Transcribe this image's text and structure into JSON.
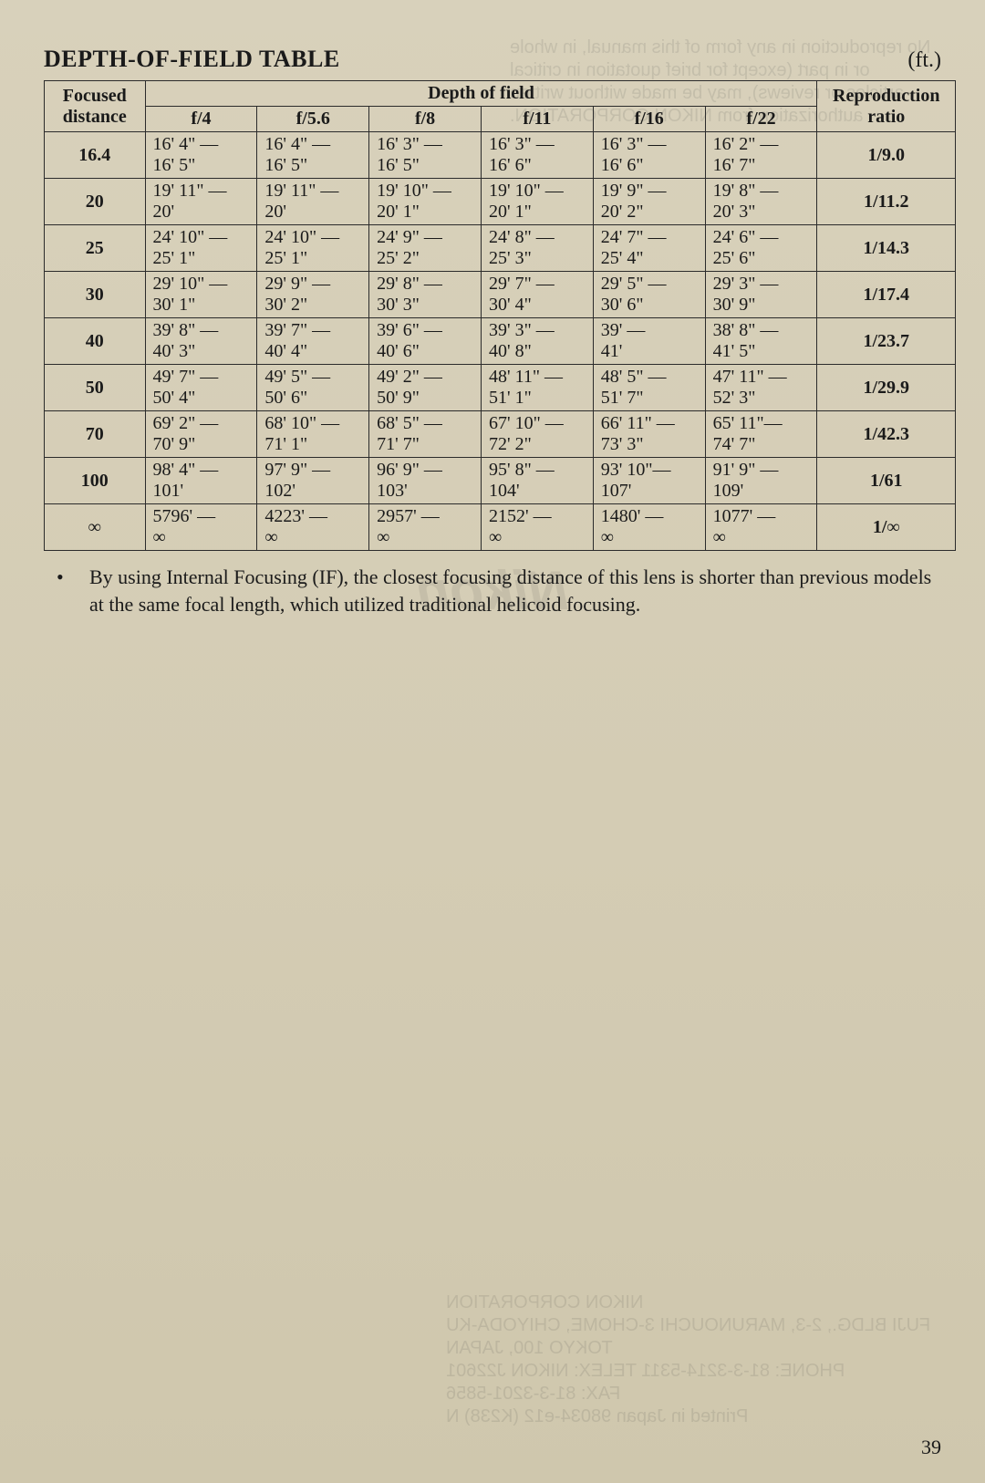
{
  "title": "DEPTH-OF-FIELD TABLE",
  "unit": "(ft.)",
  "page_number": "39",
  "headers": {
    "focused_distance": "Focused distance",
    "depth_of_field": "Depth of field",
    "reproduction_ratio": "Reproduction ratio",
    "apertures": [
      "f/4",
      "f/5.6",
      "f/8",
      "f/11",
      "f/16",
      "f/22"
    ]
  },
  "rows": [
    {
      "distance": "16.4",
      "cells": [
        {
          "near": "16' 4\" —",
          "far": "16' 5\""
        },
        {
          "near": "16' 4\" —",
          "far": "16' 5\""
        },
        {
          "near": "16' 3\" —",
          "far": "16' 5\""
        },
        {
          "near": "16' 3\" —",
          "far": "16' 6\""
        },
        {
          "near": "16' 3\" —",
          "far": "16' 6\""
        },
        {
          "near": "16' 2\" —",
          "far": "16' 7\""
        }
      ],
      "ratio": "1/9.0"
    },
    {
      "distance": "20",
      "cells": [
        {
          "near": "19' 11\" —",
          "far": "20'"
        },
        {
          "near": "19' 11\" —",
          "far": "20'"
        },
        {
          "near": "19' 10\" —",
          "far": "20' 1\""
        },
        {
          "near": "19' 10\" —",
          "far": "20' 1\""
        },
        {
          "near": "19' 9\" —",
          "far": "20' 2\""
        },
        {
          "near": "19' 8\" —",
          "far": "20' 3\""
        }
      ],
      "ratio": "1/11.2"
    },
    {
      "distance": "25",
      "cells": [
        {
          "near": "24' 10\" —",
          "far": "25' 1\""
        },
        {
          "near": "24' 10\" —",
          "far": "25' 1\""
        },
        {
          "near": "24' 9\" —",
          "far": "25' 2\""
        },
        {
          "near": "24' 8\" —",
          "far": "25' 3\""
        },
        {
          "near": "24' 7\" —",
          "far": "25' 4\""
        },
        {
          "near": "24' 6\" —",
          "far": "25' 6\""
        }
      ],
      "ratio": "1/14.3"
    },
    {
      "distance": "30",
      "cells": [
        {
          "near": "29' 10\" —",
          "far": "30' 1\""
        },
        {
          "near": "29' 9\" —",
          "far": "30' 2\""
        },
        {
          "near": "29' 8\" —",
          "far": "30' 3\""
        },
        {
          "near": "29' 7\" —",
          "far": "30' 4\""
        },
        {
          "near": "29' 5\" —",
          "far": "30' 6\""
        },
        {
          "near": "29' 3\" —",
          "far": "30' 9\""
        }
      ],
      "ratio": "1/17.4"
    },
    {
      "distance": "40",
      "cells": [
        {
          "near": "39' 8\" —",
          "far": "40' 3\""
        },
        {
          "near": "39' 7\" —",
          "far": "40' 4\""
        },
        {
          "near": "39' 6\" —",
          "far": "40' 6\""
        },
        {
          "near": "39' 3\" —",
          "far": "40' 8\""
        },
        {
          "near": "39' —",
          "far": "41'"
        },
        {
          "near": "38' 8\" —",
          "far": "41' 5\""
        }
      ],
      "ratio": "1/23.7"
    },
    {
      "distance": "50",
      "cells": [
        {
          "near": "49' 7\" —",
          "far": "50' 4\""
        },
        {
          "near": "49' 5\" —",
          "far": "50' 6\""
        },
        {
          "near": "49' 2\" —",
          "far": "50' 9\""
        },
        {
          "near": "48' 11\" —",
          "far": "51' 1\""
        },
        {
          "near": "48' 5\" —",
          "far": "51' 7\""
        },
        {
          "near": "47' 11\" —",
          "far": "52' 3\""
        }
      ],
      "ratio": "1/29.9"
    },
    {
      "distance": "70",
      "cells": [
        {
          "near": "69' 2\" —",
          "far": "70' 9\""
        },
        {
          "near": "68' 10\" —",
          "far": "71' 1\""
        },
        {
          "near": "68' 5\" —",
          "far": "71' 7\""
        },
        {
          "near": "67' 10\" —",
          "far": "72' 2\""
        },
        {
          "near": "66' 11\" —",
          "far": "73' 3\""
        },
        {
          "near": "65' 11\"—",
          "far": "74' 7\""
        }
      ],
      "ratio": "1/42.3"
    },
    {
      "distance": "100",
      "cells": [
        {
          "near": "98' 4\" —",
          "far": "101'"
        },
        {
          "near": "97' 9\" —",
          "far": "102'"
        },
        {
          "near": "96' 9\" —",
          "far": "103'"
        },
        {
          "near": "95' 8\" —",
          "far": "104'"
        },
        {
          "near": "93' 10\"—",
          "far": "107'"
        },
        {
          "near": "91' 9\" —",
          "far": "109'"
        }
      ],
      "ratio": "1/61"
    },
    {
      "distance": "∞",
      "cells": [
        {
          "near": "5796' —",
          "far": "∞"
        },
        {
          "near": "4223' —",
          "far": "∞"
        },
        {
          "near": "2957' —",
          "far": "∞"
        },
        {
          "near": "2152' —",
          "far": "∞"
        },
        {
          "near": "1480' —",
          "far": "∞"
        },
        {
          "near": "1077' —",
          "far": "∞"
        }
      ],
      "ratio": "1/∞"
    }
  ],
  "note": "By using Internal Focusing (IF), the closest focusing distance of this lens is shorter than previous models at the same focal length, which utilized traditional helicoid focusing.",
  "ghost": {
    "top": "No reproduction in any form of this manual, in whole\nor in part (except for brief quotation in critical\narticles or reviews), may be made without written\nauthorization from NIKON CORPORATION.",
    "logo": "Nikon",
    "bottom": "NIKON CORPORATION\nFUJI BLDG., 2-3, MARUNOUCHI 3-CHOME, CHIYODA-KU\nTOKYO 100, JAPAN\nPHONE: 81-3-3214-5311  TELEX: NIKON J22601\nFAX: 81-3-3201-5856\nPrinted in Japan 98034-e12 (K238) N"
  },
  "style": {
    "background": "#d6cfb8",
    "text_color": "#1a1a1a",
    "border_color": "#2b2b2b",
    "title_fontsize": 26,
    "header_fontsize": 20,
    "cell_fontsize": 20,
    "note_fontsize": 22
  }
}
